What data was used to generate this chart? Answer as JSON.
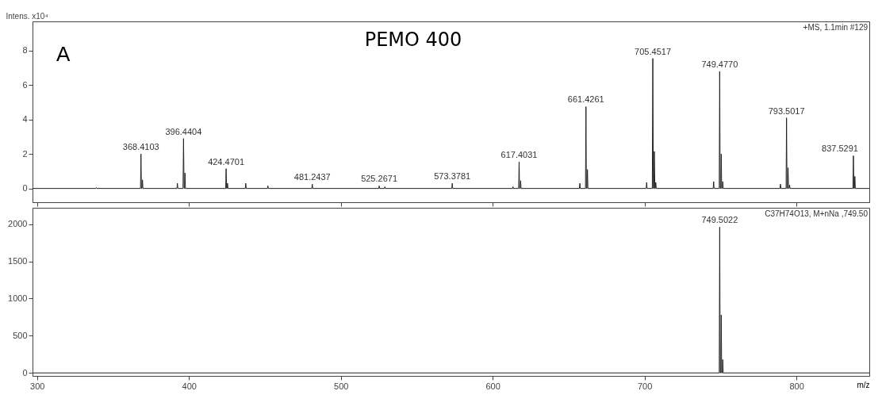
{
  "chart_data": [
    {
      "type": "line",
      "title": "PEMO 400",
      "ylabel": "Intens. x10⁴",
      "xlim": [
        297,
        848
      ],
      "xticks": [
        300,
        400,
        500,
        600,
        700,
        800
      ],
      "ylim": [
        -0.8,
        9.7
      ],
      "yticks": [
        0,
        2,
        4,
        6,
        8
      ],
      "tick_labels": "y",
      "grid": false,
      "marker": "none",
      "line_style": "solid",
      "series": [
        {
          "color": "#222222",
          "x": [
            297,
            338.7,
            339,
            339.3,
            368.1,
            368.41,
            368.7,
            369.1,
            369.4,
            369.7,
            392.1,
            392.4,
            392.7,
            396.1,
            396.44,
            396.8,
            397.1,
            397.4,
            397.7,
            424.2,
            424.47,
            424.8,
            425.1,
            425.4,
            425.7,
            437.1,
            437.4,
            437.7,
            451.7,
            452,
            452.3,
            480.9,
            481.24,
            481.5,
            525.0,
            525.27,
            525.6,
            528.7,
            529,
            529.3,
            573.1,
            573.38,
            573.7,
            613.1,
            613.4,
            613.7,
            617.1,
            617.4,
            617.7,
            618.1,
            618.4,
            618.7,
            657.1,
            657.4,
            657.7,
            661.1,
            661.43,
            661.7,
            662.1,
            662.4,
            662.7,
            701.1,
            701.4,
            701.7,
            705.1,
            705.45,
            705.8,
            706.1,
            706.45,
            706.8,
            707.1,
            707.4,
            707.7,
            745.2,
            745.5,
            745.8,
            749.2,
            749.48,
            749.8,
            750.2,
            750.5,
            750.8,
            751.2,
            751.5,
            751.8,
            789.2,
            789.5,
            789.8,
            793.2,
            793.5,
            793.8,
            794.2,
            794.5,
            794.8,
            795.2,
            795.5,
            795.8,
            837.2,
            837.53,
            837.8,
            838.2,
            838.5,
            838.8,
            848
          ],
          "values": [
            0,
            0,
            0.05,
            0,
            0,
            2.0,
            0,
            0,
            0.5,
            0,
            0,
            0.3,
            0,
            0,
            2.9,
            0,
            0,
            0.9,
            0,
            0,
            1.15,
            0,
            0,
            0.3,
            0,
            0,
            0.3,
            0,
            0,
            0.15,
            0,
            0,
            0.25,
            0,
            0,
            0.15,
            0,
            0,
            0.1,
            0,
            0,
            0.3,
            0,
            0,
            0.1,
            0,
            0,
            1.55,
            0,
            0,
            0.45,
            0,
            0,
            0.3,
            0,
            0,
            4.75,
            0,
            0,
            1.1,
            0,
            0,
            0.35,
            0,
            0,
            7.55,
            0,
            0,
            2.15,
            0,
            0,
            0.35,
            0,
            0,
            0.4,
            0,
            0,
            6.8,
            0,
            0,
            2.0,
            0,
            0,
            0.4,
            0,
            0,
            0.25,
            0,
            0,
            4.1,
            0,
            0,
            1.2,
            0,
            0,
            0.2,
            0,
            0,
            1.9,
            0,
            0,
            0.7,
            0,
            0
          ]
        }
      ],
      "annotations": [
        "A",
        "+MS, 1.1min #129",
        {
          "text": "368.4103",
          "x": 368.41,
          "y": 2.0
        },
        {
          "text": "396.4404",
          "x": 396.44,
          "y": 2.9
        },
        {
          "text": "424.4701",
          "x": 424.47,
          "y": 1.15
        },
        {
          "text": "481.2437",
          "x": 481.24,
          "y": 0.25
        },
        {
          "text": "525.2671",
          "x": 525.27,
          "y": 0.15
        },
        {
          "text": "573.3781",
          "x": 573.38,
          "y": 0.3
        },
        {
          "text": "617.4031",
          "x": 617.4,
          "y": 1.55
        },
        {
          "text": "661.4261",
          "x": 661.43,
          "y": 4.75
        },
        {
          "text": "705.4517",
          "x": 705.45,
          "y": 7.55
        },
        {
          "text": "749.4770",
          "x": 749.48,
          "y": 6.8
        },
        {
          "text": "793.5017",
          "x": 793.5,
          "y": 4.1
        },
        {
          "text": "837.5291",
          "x": 837.53,
          "y": 1.9
        }
      ]
    },
    {
      "type": "line",
      "xlabel": "m/z",
      "xlim": [
        297,
        848
      ],
      "xticks": [
        300,
        400,
        500,
        600,
        700,
        800
      ],
      "ylim": [
        -40,
        2220
      ],
      "yticks": [
        0,
        500,
        1000,
        1500,
        2000
      ],
      "grid": false,
      "marker": "none",
      "line_style": "solid",
      "series": [
        {
          "color": "#222222",
          "x": [
            297,
            749.2,
            749.5,
            749.8,
            750.2,
            750.5,
            750.8,
            751.2,
            751.5,
            751.8,
            848
          ],
          "values": [
            0,
            0,
            1960,
            0,
            0,
            780,
            0,
            0,
            180,
            0,
            0
          ]
        }
      ],
      "annotations": [
        "C37H74O13, M+nNa ,749.50",
        {
          "text": "749.5022",
          "x": 749.5,
          "y": 1960
        }
      ]
    }
  ]
}
